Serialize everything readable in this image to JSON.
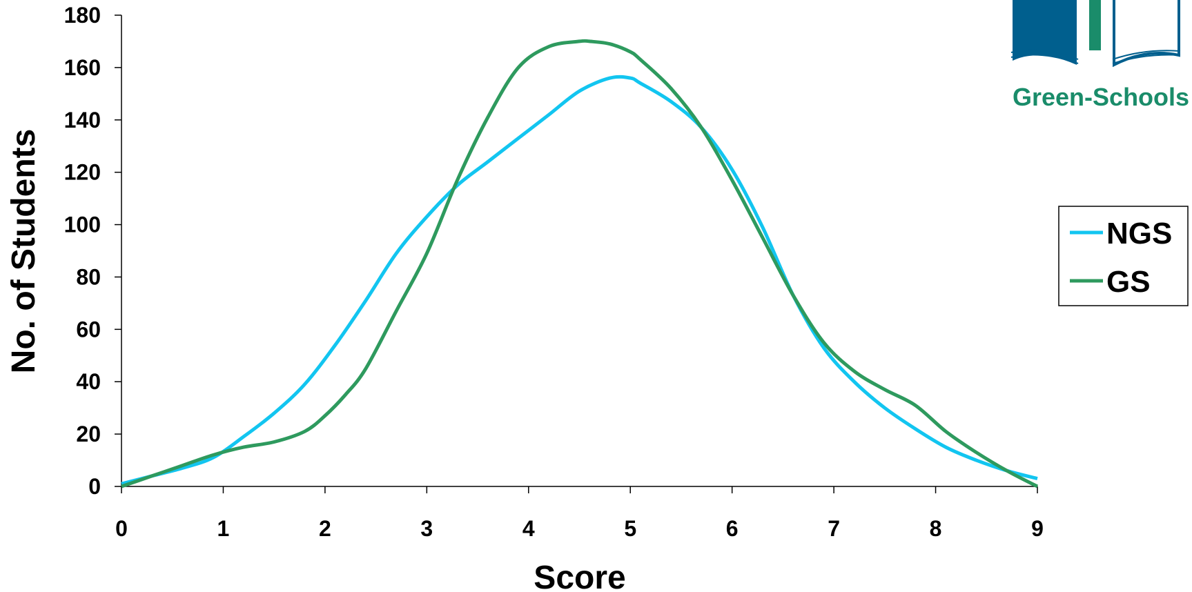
{
  "chart_data": {
    "type": "line",
    "xlabel": "Score",
    "ylabel": "No. of Students",
    "xlim": [
      0,
      9
    ],
    "ylim": [
      0,
      180
    ],
    "x_ticks": [
      "0",
      "1",
      "2",
      "3",
      "4",
      "5",
      "6",
      "7",
      "8",
      "9"
    ],
    "y_ticks": [
      "0",
      "20",
      "40",
      "60",
      "80",
      "100",
      "120",
      "140",
      "160",
      "180"
    ],
    "grid": false,
    "legend_position": "right",
    "series": [
      {
        "name": "NGS",
        "color": "#12c5f0",
        "x": [
          0,
          0.3,
          0.6,
          0.9,
          1.2,
          1.5,
          1.8,
          2.1,
          2.4,
          2.7,
          3.0,
          3.3,
          3.6,
          3.9,
          4.2,
          4.5,
          4.8,
          5.0,
          5.1,
          5.4,
          5.7,
          6.0,
          6.3,
          6.6,
          6.9,
          7.2,
          7.5,
          7.8,
          8.1,
          8.4,
          8.7,
          9.0
        ],
        "y": [
          1,
          4,
          7,
          11,
          19,
          28,
          39,
          54,
          71,
          89,
          103,
          115,
          124,
          133,
          142,
          151,
          156,
          156,
          154,
          147,
          137,
          121,
          99,
          73,
          53,
          40,
          30,
          22,
          15,
          10,
          6,
          3
        ]
      },
      {
        "name": "GS",
        "color": "#2e9a5e",
        "x": [
          0,
          0.3,
          0.6,
          0.9,
          1.2,
          1.5,
          1.8,
          2.0,
          2.2,
          2.4,
          2.7,
          3.0,
          3.3,
          3.6,
          3.9,
          4.2,
          4.5,
          4.6,
          4.8,
          5.0,
          5.1,
          5.4,
          5.7,
          6.0,
          6.3,
          6.6,
          6.9,
          7.2,
          7.5,
          7.8,
          8.1,
          8.4,
          8.7,
          9.0
        ],
        "y": [
          0,
          4,
          8,
          12,
          15,
          17,
          21,
          27,
          35,
          45,
          67,
          89,
          117,
          141,
          160,
          168,
          170,
          170,
          169,
          166,
          163,
          152,
          137,
          117,
          95,
          73,
          55,
          44,
          37,
          31,
          21,
          13,
          6,
          0
        ]
      }
    ]
  },
  "logo": {
    "text": "Green-Schools",
    "colors": {
      "book_blue": "#005f8e",
      "book_green": "#1a8c6a",
      "text": "#1a8c6a"
    }
  }
}
